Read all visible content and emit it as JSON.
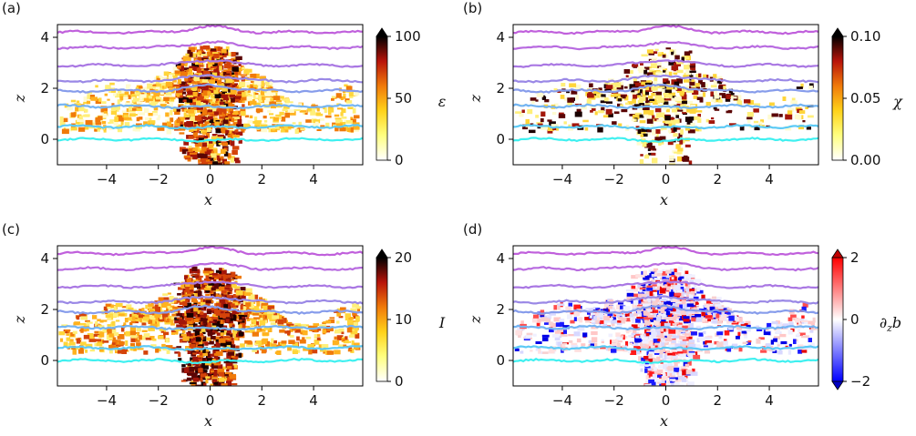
{
  "chart_data": [
    {
      "type": "heatmap",
      "panel": "(a)",
      "xlabel": "x",
      "ylabel": "z",
      "xticks": [
        -4,
        -2,
        0,
        2,
        4
      ],
      "yticks": [
        0,
        2,
        4
      ],
      "xlim": [
        -5.9,
        5.9
      ],
      "ylim": [
        -1.0,
        4.5
      ],
      "colorbar": {
        "label": "ε",
        "ticks": [
          0,
          50,
          100
        ],
        "range": [
          0,
          100
        ],
        "colormap": "hot-reversed",
        "extend": "max"
      },
      "contour_levels": [
        0.0,
        0.5,
        1.3,
        1.9,
        2.3,
        2.9,
        3.6,
        4.2
      ]
    },
    {
      "type": "heatmap",
      "panel": "(b)",
      "xlabel": "x",
      "ylabel": "z",
      "xticks": [
        -4,
        -2,
        0,
        2,
        4
      ],
      "yticks": [
        0,
        2,
        4
      ],
      "xlim": [
        -5.9,
        5.9
      ],
      "ylim": [
        -1.0,
        4.5
      ],
      "colorbar": {
        "label": "χ",
        "ticks": [
          "0.00",
          "0.05",
          "0.10"
        ],
        "range": [
          0,
          0.1
        ],
        "colormap": "hot-reversed",
        "extend": "max"
      },
      "contour_levels": [
        0.0,
        0.5,
        1.3,
        1.9,
        2.3,
        2.9,
        3.6,
        4.2
      ]
    },
    {
      "type": "heatmap",
      "panel": "(c)",
      "xlabel": "x",
      "ylabel": "z",
      "xticks": [
        -4,
        -2,
        0,
        2,
        4
      ],
      "yticks": [
        0,
        2,
        4
      ],
      "xlim": [
        -5.9,
        5.9
      ],
      "ylim": [
        -1.0,
        4.5
      ],
      "colorbar": {
        "label": "I",
        "ticks": [
          0,
          10,
          20
        ],
        "range": [
          0,
          20
        ],
        "colormap": "hot-reversed",
        "extend": "max"
      },
      "contour_levels": [
        0.0,
        0.5,
        1.3,
        1.9,
        2.3,
        2.9,
        3.6,
        4.2
      ]
    },
    {
      "type": "heatmap",
      "panel": "(d)",
      "xlabel": "x",
      "ylabel": "z",
      "xticks": [
        -4,
        -2,
        0,
        2,
        4
      ],
      "yticks": [
        0,
        2,
        4
      ],
      "xlim": [
        -5.9,
        5.9
      ],
      "ylim": [
        -1.0,
        4.5
      ],
      "colorbar": {
        "label": "∂zb",
        "ticks": [
          -2,
          0,
          2
        ],
        "range": [
          -2,
          2
        ],
        "colormap": "bwr",
        "extend": "both"
      },
      "contour_levels": [
        0.0,
        0.5,
        1.3,
        1.9,
        2.3,
        2.9,
        3.6,
        4.2
      ]
    }
  ],
  "contour_colors": [
    "#3ff0f0",
    "#5ccaf5",
    "#73b4f2",
    "#869ceb",
    "#9a88e6",
    "#a977e3",
    "#b86be0",
    "#c060dc"
  ]
}
